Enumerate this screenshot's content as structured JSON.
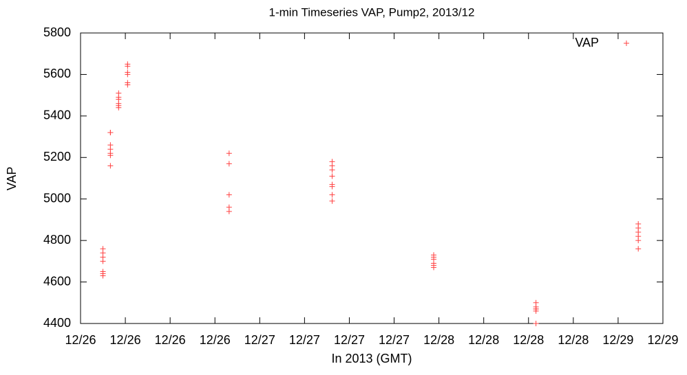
{
  "chart_data": {
    "type": "scatter",
    "title": "1-min Timeseries VAP, Pump2, 2013/12",
    "x_label": "In 2013 (GMT)",
    "y_label": "VAP",
    "x": [
      3.0,
      3.0,
      3.0,
      3.0,
      3.0,
      3.0,
      3.0,
      4.0,
      4.0,
      4.0,
      4.0,
      4.0,
      4.0,
      4.0,
      5.1,
      5.1,
      5.1,
      5.1,
      5.1,
      5.1,
      6.3,
      6.3,
      6.3,
      6.3,
      6.3,
      6.3,
      19.9,
      19.9,
      19.9,
      19.9,
      19.9,
      33.7,
      33.7,
      33.7,
      33.7,
      33.7,
      33.7,
      33.7,
      33.7,
      33.7,
      47.3,
      47.3,
      47.3,
      47.3,
      47.3,
      47.3,
      61.0,
      61.0,
      61.0,
      61.0,
      61.0,
      61.0,
      74.7,
      74.7,
      74.7,
      74.7,
      74.7,
      74.7
    ],
    "series": [
      {
        "name": "VAP",
        "color": "#ff4040",
        "values": [
          4760,
          4740,
          4720,
          4700,
          4650,
          4640,
          4630,
          5320,
          5320,
          5260,
          5240,
          5220,
          5210,
          5160,
          5510,
          5490,
          5480,
          5460,
          5450,
          5440,
          5650,
          5640,
          5610,
          5600,
          5560,
          5550,
          5220,
          5170,
          5020,
          4960,
          4940,
          5180,
          5160,
          5140,
          5110,
          5110,
          5070,
          5060,
          5020,
          4990,
          4730,
          4720,
          4710,
          4690,
          4680,
          4670,
          4500,
          4480,
          4470,
          4470,
          4460,
          4400,
          4880,
          4860,
          4840,
          4820,
          4800,
          4760
        ]
      }
    ],
    "xlim": [
      0,
      78
    ],
    "xticks": [
      {
        "value": 0,
        "label": "12/26"
      },
      {
        "value": 6,
        "label": "12/26"
      },
      {
        "value": 12,
        "label": "12/26"
      },
      {
        "value": 18,
        "label": "12/26"
      },
      {
        "value": 24,
        "label": "12/27"
      },
      {
        "value": 30,
        "label": "12/27"
      },
      {
        "value": 36,
        "label": "12/27"
      },
      {
        "value": 42,
        "label": "12/27"
      },
      {
        "value": 48,
        "label": "12/28"
      },
      {
        "value": 54,
        "label": "12/28"
      },
      {
        "value": 60,
        "label": "12/28"
      },
      {
        "value": 66,
        "label": "12/28"
      },
      {
        "value": 72,
        "label": "12/29"
      },
      {
        "value": 78,
        "label": "12/29"
      }
    ],
    "ylim": [
      4400,
      5800
    ],
    "yticks": [
      4400,
      4600,
      4800,
      5000,
      5200,
      5400,
      5600,
      5800
    ],
    "grid": false,
    "legend": "top-right"
  }
}
